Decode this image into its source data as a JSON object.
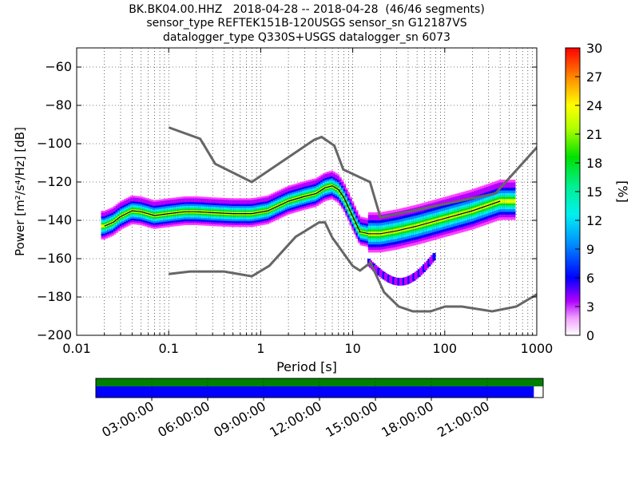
{
  "title": {
    "line1": "BK.BK04.00.HHZ   2018-04-28 -- 2018-04-28  (46/46 segments)",
    "line2": "sensor_type REFTEK151B-120USGS sensor_sn G12187VS",
    "line3": "datalogger_type Q330S+USGS datalogger_sn 6073"
  },
  "chart_data": {
    "type": "heatmap",
    "xlabel": "Period [s]",
    "ylabel": "Power [m²/s⁴/Hz] [dB]",
    "xscale": "log",
    "xlim": [
      0.01,
      1000
    ],
    "ylim": [
      -200,
      -50
    ],
    "xtick_labels": [
      "0.01",
      "0.1",
      "1",
      "10",
      "100",
      "1000"
    ],
    "ytick_values": [
      -200,
      -180,
      -160,
      -140,
      -120,
      -100,
      -80,
      -60
    ],
    "grid": true,
    "colorbar": {
      "label": "[%]",
      "range": [
        0,
        30
      ],
      "tick_values": [
        0,
        3,
        6,
        9,
        12,
        15,
        18,
        21,
        24,
        27,
        30
      ]
    },
    "high_noise_model": {
      "period": [
        0.1,
        0.22,
        0.32,
        0.8,
        3.8,
        4.6,
        6.3,
        7.9,
        15.4,
        20,
        354.8,
        10000
      ],
      "power": [
        -91.5,
        -97.4,
        -110.5,
        -120,
        -98,
        -96.5,
        -101,
        -113.5,
        -120,
        -138.5,
        -126,
        -48.5
      ]
    },
    "low_noise_model": {
      "period": [
        0.1,
        0.17,
        0.4,
        0.8,
        1.24,
        2.4,
        4.3,
        5,
        6,
        10,
        12,
        15.6,
        21.9,
        31.6,
        45,
        70,
        101,
        154,
        328,
        600,
        10000
      ],
      "power": [
        -168,
        -166.7,
        -166.7,
        -169.2,
        -163.7,
        -148.6,
        -141.1,
        -141.1,
        -149,
        -163.8,
        -166.2,
        -162.1,
        -177.5,
        -185,
        -187.5,
        -187.5,
        -185,
        -185,
        -187.5,
        -185,
        -150
      ]
    },
    "median": {
      "period": [
        0.02,
        0.025,
        0.03,
        0.04,
        0.05,
        0.07,
        0.1,
        0.15,
        0.2,
        0.3,
        0.5,
        0.8,
        1.2,
        2,
        3,
        4,
        5,
        6,
        7,
        8,
        10,
        12,
        15,
        20,
        30,
        50,
        100,
        200,
        400
      ],
      "power": [
        -143,
        -141,
        -138,
        -135,
        -135.5,
        -137.5,
        -136.5,
        -135.5,
        -135.5,
        -136,
        -136.5,
        -136.5,
        -135,
        -130,
        -127.5,
        -126,
        -123,
        -122,
        -124,
        -128,
        -138,
        -146,
        -147,
        -147,
        -145.5,
        -143,
        -139,
        -135,
        -130
      ]
    },
    "time_axis": {
      "tick_labels": [
        "03:00:00",
        "06:00:00",
        "09:00:00",
        "12:00:00",
        "15:00:00",
        "18:00:00",
        "21:00:00"
      ],
      "tick_hours": [
        3,
        6,
        9,
        12,
        15,
        18,
        21
      ],
      "range_hours": [
        0,
        24
      ],
      "available_data_until_hour": 23.5
    }
  }
}
